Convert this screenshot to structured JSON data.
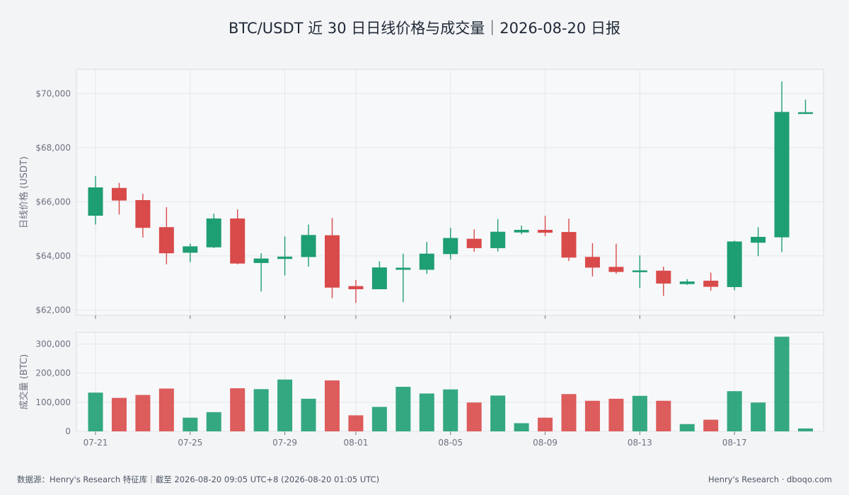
{
  "title": "BTC/USDT 近 30 日日线价格与成交量｜2026-08-20 日报",
  "footer": {
    "source": "数据源：Henry's Research 特征库｜截至 2026-08-20 09:05 UTC+8 (2026-08-20 01:05 UTC)",
    "brand": "Henry's Research  ·  dboqo.com"
  },
  "colors": {
    "up": "#1e9e73",
    "down": "#d94a4a",
    "grid": "#e3e6ea",
    "panel": "#f7f8fa"
  },
  "chart_data": [
    {
      "type": "candlestick",
      "ylabel": "日线价格 (USDT)",
      "ylim": [
        61800,
        70900
      ],
      "yticks": [
        62000,
        64000,
        66000,
        68000,
        70000
      ],
      "ytick_labels": [
        "$62,000",
        "$64,000",
        "$66,000",
        "$68,000",
        "$70,000"
      ],
      "dates": [
        "07-21",
        "07-22",
        "07-23",
        "07-24",
        "07-25",
        "07-26",
        "07-27",
        "07-28",
        "07-29",
        "07-30",
        "07-31",
        "08-01",
        "08-02",
        "08-03",
        "08-04",
        "08-05",
        "08-06",
        "08-07",
        "08-08",
        "08-09",
        "08-10",
        "08-11",
        "08-12",
        "08-13",
        "08-14",
        "08-15",
        "08-16",
        "08-17",
        "08-18",
        "08-19",
        "08-20"
      ],
      "xtick_labels": [
        "07-21",
        "07-25",
        "07-29",
        "08-01",
        "08-05",
        "08-09",
        "08-13",
        "08-17"
      ],
      "open": [
        65500,
        66500,
        66050,
        65050,
        64130,
        64330,
        65370,
        63750,
        63900,
        63970,
        64750,
        62870,
        62780,
        63500,
        63500,
        64080,
        64620,
        64300,
        64880,
        64950,
        64870,
        63950,
        63580,
        63450,
        63440,
        62970,
        63070,
        62860,
        64500,
        64700,
        69300
      ],
      "high": [
        66950,
        66700,
        66300,
        65800,
        64450,
        65560,
        65720,
        64100,
        64720,
        65160,
        65400,
        63110,
        63800,
        64080,
        64520,
        65040,
        64980,
        65360,
        65120,
        65480,
        65380,
        64470,
        64450,
        64020,
        63600,
        63140,
        63380,
        64560,
        65060,
        70450,
        69780
      ],
      "low": [
        65160,
        65530,
        64680,
        63690,
        63770,
        64290,
        63690,
        62680,
        63280,
        63600,
        62440,
        62260,
        62780,
        62290,
        63340,
        63870,
        64150,
        64160,
        64800,
        64730,
        63810,
        63240,
        63340,
        62810,
        62520,
        62930,
        62710,
        62730,
        63990,
        64140,
        69300
      ],
      "close": [
        66520,
        66060,
        65050,
        64110,
        64340,
        65370,
        63730,
        63890,
        63960,
        64760,
        62840,
        62780,
        63560,
        63550,
        64070,
        64650,
        64300,
        64880,
        64950,
        64870,
        63950,
        63580,
        63420,
        63450,
        62990,
        63040,
        62870,
        64520,
        64690,
        69310,
        69300
      ]
    },
    {
      "type": "bar",
      "ylabel": "成交量 (BTC)",
      "ylim": [
        0,
        340000
      ],
      "yticks": [
        0,
        100000,
        200000,
        300000
      ],
      "ytick_labels": [
        "0",
        "100,000",
        "200,000",
        "300,000"
      ],
      "values": [
        133000,
        115000,
        125000,
        147000,
        47000,
        66000,
        148000,
        145000,
        178000,
        112000,
        175000,
        55000,
        84000,
        153000,
        130000,
        144000,
        99000,
        123000,
        28000,
        47000,
        128000,
        105000,
        112000,
        122000,
        105000,
        25000,
        40000,
        138000,
        99000,
        325000,
        10000
      ]
    }
  ]
}
